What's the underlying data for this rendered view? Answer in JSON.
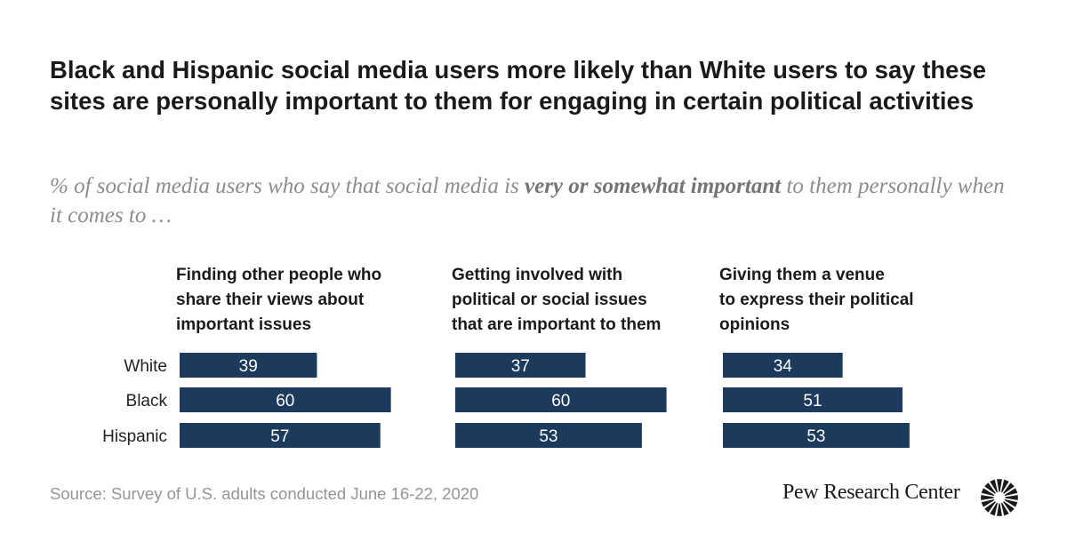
{
  "title": "Black and Hispanic social media users more likely than White users to say these sites are personally important to them for engaging in certain political activities",
  "subtitle": {
    "pre": "% of social media users who say that social media is ",
    "emphasis": "very or somewhat important",
    "post": " to them personally when it comes to …"
  },
  "source": "Source: Survey of U.S. adults conducted June 16-22, 2020",
  "brand": "Pew Research Center",
  "colors": {
    "bar": "#1b3a5c",
    "bar_label": "#ffffff"
  },
  "icons": {
    "logo": "pew-sunburst-logo"
  },
  "chart_data": {
    "type": "bar",
    "orientation": "horizontal",
    "categories": [
      "White",
      "Black",
      "Hispanic"
    ],
    "xlim": [
      0,
      100
    ],
    "panels": [
      {
        "title": [
          "Finding other people who",
          "share their views about",
          "important issues"
        ],
        "values": [
          39,
          60,
          57
        ]
      },
      {
        "title": [
          "Getting involved with",
          "political or social issues",
          "that are important to them"
        ],
        "values": [
          37,
          60,
          53
        ]
      },
      {
        "title": [
          "Giving them a venue",
          "to express their political",
          "opinions"
        ],
        "values": [
          34,
          51,
          53
        ]
      }
    ]
  }
}
